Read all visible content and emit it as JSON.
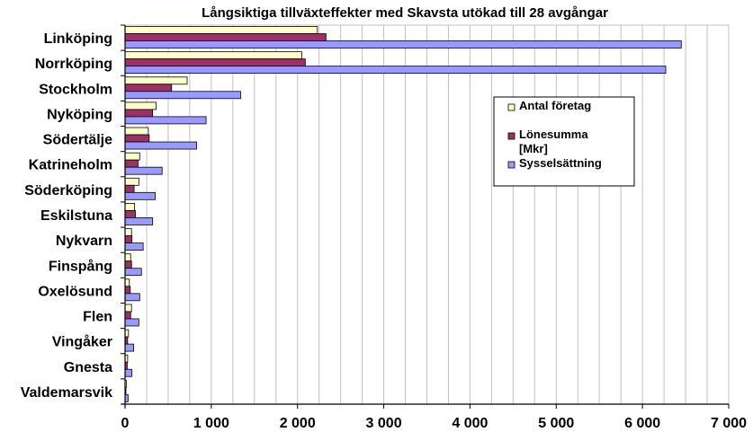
{
  "chart_data": {
    "type": "bar",
    "orientation": "horizontal",
    "title": "Långsiktiga tillväxteffekter med Skavsta utökad till 28 avgångar",
    "categories": [
      "Linköping",
      "Norrköping",
      "Stockholm",
      "Nyköping",
      "Södertälje",
      "Katrineholm",
      "Söderköping",
      "Eskilstuna",
      "Nykvarn",
      "Finspång",
      "Oxelösund",
      "Flen",
      "Vingåker",
      "Gnesta",
      "Valdemarsvik"
    ],
    "series": [
      {
        "name": "Antal företag",
        "color": "#ffffcc",
        "values": [
          2230,
          2050,
          720,
          360,
          270,
          170,
          160,
          110,
          75,
          65,
          50,
          75,
          40,
          30,
          15
        ]
      },
      {
        "name": "Lönesumma [Mkr]",
        "color": "#993366",
        "values": [
          2330,
          2090,
          540,
          320,
          280,
          150,
          105,
          120,
          80,
          75,
          60,
          65,
          30,
          25,
          10
        ]
      },
      {
        "name": "Sysselsättning",
        "color": "#9999ff",
        "values": [
          6450,
          6270,
          1340,
          940,
          830,
          430,
          350,
          320,
          210,
          190,
          170,
          160,
          100,
          80,
          35
        ]
      }
    ],
    "xlim": [
      0,
      7000
    ],
    "xticks": [
      0,
      1000,
      2000,
      3000,
      4000,
      5000,
      6000,
      7000
    ],
    "xtick_labels": [
      "0",
      "1 000",
      "2 000",
      "3 000",
      "4 000",
      "5 000",
      "6 000",
      "7 000"
    ],
    "grid": true,
    "legend_position": "right"
  }
}
